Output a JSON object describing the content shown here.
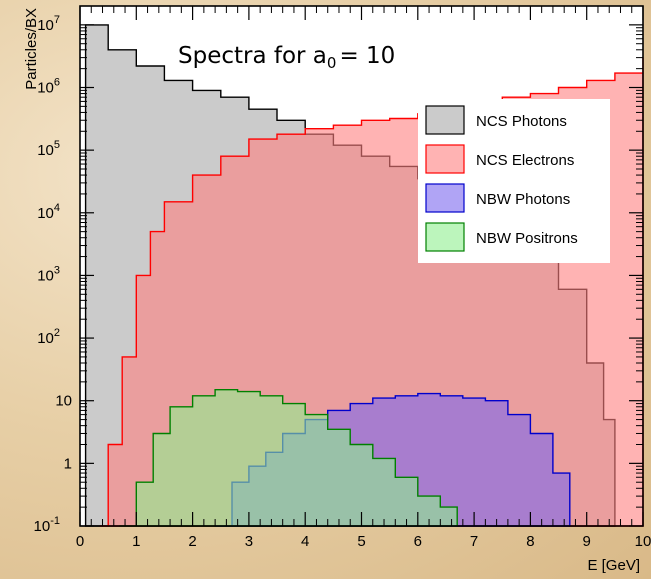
{
  "chart_data": {
    "type": "histogram",
    "title_main": "Spectra for a",
    "title_sub": "0",
    "title_tail": "= 10",
    "xlabel": "E [GeV]",
    "ylabel": "Particles/BX",
    "xlim": [
      0,
      10
    ],
    "ylim": [
      0.1,
      20000000
    ],
    "yscale": "log",
    "xticks": [
      0,
      1,
      2,
      3,
      4,
      5,
      6,
      7,
      8,
      9,
      10
    ],
    "yticks": [
      {
        "base": "10",
        "exp": "-1",
        "value": 0.1
      },
      {
        "base": "1",
        "exp": "",
        "value": 1
      },
      {
        "base": "10",
        "exp": "",
        "value": 10
      },
      {
        "base": "10",
        "exp": "2",
        "value": 100
      },
      {
        "base": "10",
        "exp": "3",
        "value": 1000
      },
      {
        "base": "10",
        "exp": "4",
        "value": 10000
      },
      {
        "base": "10",
        "exp": "5",
        "value": 100000
      },
      {
        "base": "10",
        "exp": "6",
        "value": 1000000
      },
      {
        "base": "10",
        "exp": "7",
        "value": 10000000
      }
    ],
    "legend_position": "top-right",
    "series": [
      {
        "name": "NCS Photons",
        "fill": "#a9a9a9",
        "line": "#000000",
        "x": [
          0.1,
          0.5,
          1,
          1.5,
          2,
          2.5,
          3,
          3.5,
          4,
          4.5,
          5,
          5.5,
          6,
          6.5,
          7,
          7.5,
          8,
          8.5,
          9,
          9.3,
          9.5
        ],
        "y": [
          10000000,
          4000000,
          2200000,
          1300000,
          900000,
          700000,
          450000,
          300000,
          180000,
          120000,
          80000,
          55000,
          35000,
          25000,
          12000,
          6000,
          3000,
          600,
          40,
          5,
          0.1
        ]
      },
      {
        "name": "NCS Electrons",
        "fill": "#ff8080",
        "line": "#ff0000",
        "x": [
          0.35,
          0.5,
          0.75,
          1,
          1.25,
          1.5,
          2,
          2.5,
          3,
          3.5,
          4,
          4.5,
          5,
          5.5,
          6,
          6.5,
          7,
          7.5,
          8,
          8.5,
          9,
          9.5,
          10
        ],
        "y": [
          0.1,
          2,
          50,
          1000,
          5000,
          15000,
          40000,
          80000,
          150000,
          180000,
          220000,
          250000,
          300000,
          320000,
          380000,
          420000,
          550000,
          700000,
          800000,
          1000000,
          1300000,
          1700000,
          3000000
        ]
      },
      {
        "name": "NBW Photons",
        "fill": "#7b68ee",
        "line": "#0000cc",
        "x": [
          2.4,
          2.7,
          3,
          3.3,
          3.6,
          4,
          4.4,
          4.8,
          5.2,
          5.6,
          6,
          6.4,
          6.8,
          7.2,
          7.6,
          8,
          8.4,
          8.7
        ],
        "y": [
          0.1,
          0.5,
          0.9,
          1.5,
          3,
          5,
          7,
          9,
          11,
          12,
          13,
          12,
          11,
          10,
          6,
          3,
          0.7,
          0.1
        ]
      },
      {
        "name": "NBW Positrons",
        "fill": "#90ee90",
        "line": "#008000",
        "x": [
          0.7,
          1,
          1.3,
          1.6,
          2,
          2.4,
          2.8,
          3.2,
          3.6,
          4,
          4.4,
          4.8,
          5.2,
          5.6,
          6,
          6.4,
          6.7
        ],
        "y": [
          0.1,
          0.5,
          3,
          8,
          12,
          15,
          14,
          12,
          9,
          6,
          3.5,
          2,
          1.2,
          0.6,
          0.3,
          0.2,
          0.1
        ]
      }
    ]
  }
}
